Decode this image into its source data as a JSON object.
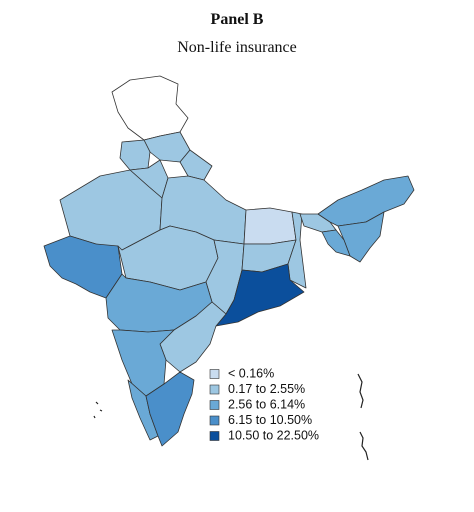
{
  "title": "Panel B",
  "subtitle": "Non-life insurance",
  "legend": [
    {
      "label": "< 0.16%",
      "color": "#c9dcf0"
    },
    {
      "label": "0.17 to 2.55%",
      "color": "#9dc7e2"
    },
    {
      "label": "2.56 to 6.14%",
      "color": "#6aa9d6"
    },
    {
      "label": "6.15 to 10.50%",
      "color": "#4a8fca"
    },
    {
      "label": "10.50 to 22.50%",
      "color": "#0b4f9c"
    }
  ]
}
